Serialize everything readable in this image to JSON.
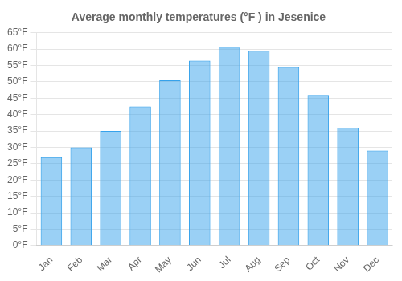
{
  "chart_data": {
    "type": "bar",
    "title": "Average monthly temperatures (°F ) in Jesenice",
    "categories": [
      "Jan",
      "Feb",
      "Mar",
      "Apr",
      "May",
      "Jun",
      "Jul",
      "Aug",
      "Sep",
      "Oct",
      "Nov",
      "Dec"
    ],
    "values": [
      27,
      30,
      35,
      42.5,
      50.5,
      56.5,
      60.5,
      59.5,
      54.5,
      46,
      36,
      29
    ],
    "ylim": [
      0,
      65
    ],
    "yticks": [
      {
        "value": 0,
        "label": "0°F"
      },
      {
        "value": 5,
        "label": "5°F"
      },
      {
        "value": 10,
        "label": "10°F"
      },
      {
        "value": 15,
        "label": "15°F"
      },
      {
        "value": 20,
        "label": "20°F"
      },
      {
        "value": 25,
        "label": "25°F"
      },
      {
        "value": 30,
        "label": "30°F"
      },
      {
        "value": 35,
        "label": "35°F"
      },
      {
        "value": 40,
        "label": "40°F"
      },
      {
        "value": 45,
        "label": "45°F"
      },
      {
        "value": 50,
        "label": "50°F"
      },
      {
        "value": 55,
        "label": "55°F"
      },
      {
        "value": 60,
        "label": "60°F"
      },
      {
        "value": 65,
        "label": "65°F"
      }
    ],
    "grid": true
  }
}
